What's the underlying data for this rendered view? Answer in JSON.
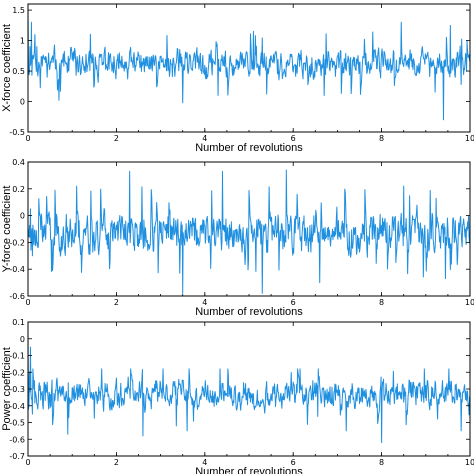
{
  "chart_data": [
    {
      "type": "line",
      "xlabel": "Number of revolutions",
      "ylabel": "X-force coefficient",
      "xlim": [
        0,
        10
      ],
      "ylim": [
        -0.5,
        1.6
      ],
      "xticks": [
        0,
        2,
        4,
        6,
        8,
        10
      ],
      "yticks": [
        -0.5,
        0,
        0.5,
        1,
        1.5
      ],
      "ytick_labels": [
        "-0.5",
        "0",
        "0.5",
        "1",
        "1.5"
      ],
      "grid": false,
      "series": [
        {
          "color": "#1f8fe0",
          "seed": 11,
          "mean": 0.62,
          "amplitude": 0.2,
          "min": -0.3,
          "max": 1.3,
          "transient": [
            [
              0,
              1.55
            ],
            [
              0.04,
              0.9
            ],
            [
              0.08,
              1.3
            ],
            [
              0.12,
              0.7
            ],
            [
              0.16,
              1.1
            ],
            [
              0.2,
              0.9
            ]
          ],
          "spikes": [
            [
              0.7,
              0.02
            ],
            [
              3.5,
              -0.02
            ],
            [
              4.3,
              0.1
            ],
            [
              5.1,
              1.15
            ],
            [
              6.7,
              0.1
            ],
            [
              8.45,
              1.3
            ],
            [
              9.4,
              -0.3
            ],
            [
              9.55,
              1.25
            ]
          ]
        }
      ]
    },
    {
      "type": "line",
      "xlabel": "Number of revolutions",
      "ylabel": "Y-force coefficient",
      "xlim": [
        0,
        10
      ],
      "ylim": [
        -0.6,
        0.4
      ],
      "xticks": [
        0,
        2,
        4,
        6,
        8,
        10
      ],
      "yticks": [
        -0.6,
        -0.4,
        -0.2,
        0,
        0.2,
        0.4
      ],
      "ytick_labels": [
        "-0.6",
        "-0.4",
        "-0.2",
        "0",
        "0.2",
        "0.4"
      ],
      "grid": false,
      "series": [
        {
          "color": "#1f8fe0",
          "seed": 23,
          "mean": -0.12,
          "amplitude": 0.13,
          "min": -0.6,
          "max": 0.35,
          "transient": [
            [
              0,
              -0.1
            ],
            [
              0.05,
              0.05
            ],
            [
              0.1,
              -0.3
            ]
          ],
          "spikes": [
            [
              1.1,
              0.22
            ],
            [
              2.3,
              -0.52
            ],
            [
              2.3,
              0.33
            ],
            [
              3.5,
              -0.58
            ],
            [
              4.4,
              0.33
            ],
            [
              5.3,
              -0.58
            ],
            [
              5.85,
              0.34
            ],
            [
              6.6,
              -0.5
            ],
            [
              8.5,
              0.22
            ],
            [
              9.45,
              -0.47
            ]
          ]
        }
      ]
    },
    {
      "type": "line",
      "xlabel": "Number of revolutions",
      "ylabel": "Power coefficient",
      "xlim": [
        0,
        10
      ],
      "ylim": [
        -0.7,
        0.1
      ],
      "xticks": [
        0,
        2,
        4,
        6,
        8,
        10
      ],
      "yticks": [
        -0.7,
        -0.6,
        -0.5,
        -0.4,
        -0.3,
        -0.2,
        -0.1,
        0,
        0.1
      ],
      "ytick_labels": [
        "-0.7",
        "-0.6",
        "-0.5",
        "-0.4",
        "-0.3",
        "-0.2",
        "-0.1",
        "0",
        "0.1"
      ],
      "grid": false,
      "series": [
        {
          "color": "#1f8fe0",
          "seed": 37,
          "mean": -0.33,
          "amplitude": 0.075,
          "min": -0.62,
          "max": -0.18,
          "transient": [
            [
              0,
              0.04
            ],
            [
              0.03,
              -0.2
            ],
            [
              0.06,
              -0.05
            ],
            [
              0.1,
              -0.45
            ],
            [
              0.14,
              -0.25
            ]
          ],
          "spikes": [
            [
              0.9,
              -0.57
            ],
            [
              2.6,
              -0.58
            ],
            [
              3.6,
              -0.55
            ],
            [
              7.2,
              -0.55
            ],
            [
              8.0,
              -0.62
            ],
            [
              9.8,
              -0.55
            ]
          ]
        }
      ]
    }
  ]
}
